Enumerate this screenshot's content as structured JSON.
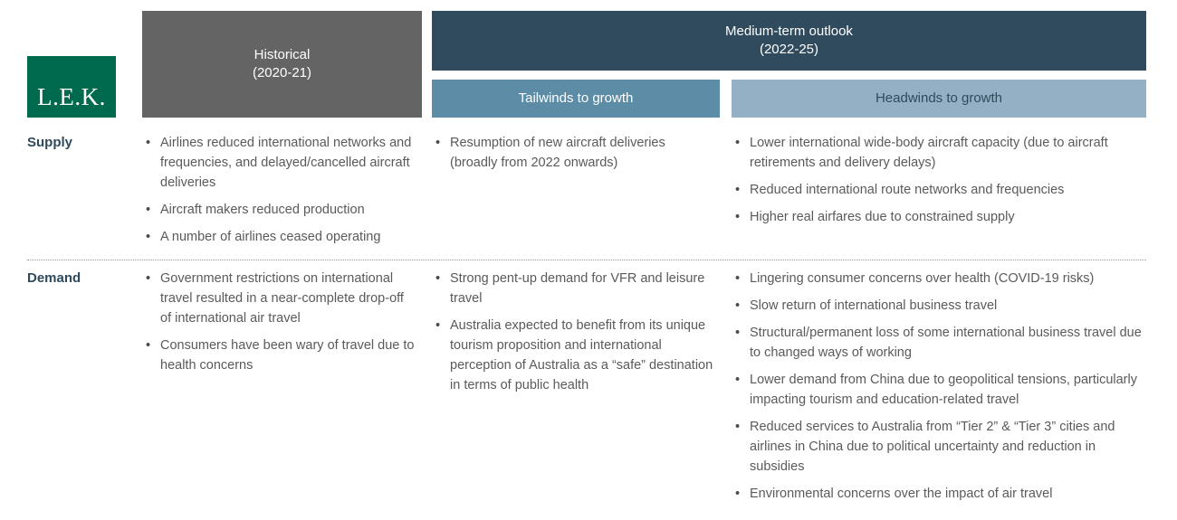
{
  "colors": {
    "lek_green": "#006a4e",
    "gray_header": "#646464",
    "dark_slate": "#304b5e",
    "tailwinds_blue": "#5d8ca7",
    "headwinds_blue": "#94b0c4",
    "label_color": "#2e4a5c",
    "body_text": "#5a5a5a"
  },
  "brand": {
    "logo_text": "L.E.K."
  },
  "header": {
    "historical_line1": "Historical",
    "historical_line2": "(2020-21)",
    "medium_term_line1": "Medium-term outlook",
    "medium_term_line2": "(2022-25)",
    "tailwinds_label": "Tailwinds to growth",
    "headwinds_label": "Headwinds to growth"
  },
  "rows": [
    {
      "label": "Supply",
      "historical": [
        "Airlines reduced international networks and frequencies, and delayed/cancelled aircraft deliveries",
        "Aircraft makers reduced production",
        "A number of airlines ceased operating"
      ],
      "tailwinds": [
        "Resumption of new aircraft deliveries (broadly from 2022 onwards)"
      ],
      "headwinds": [
        "Lower international wide-body aircraft capacity (due to aircraft retirements and delivery delays)",
        "Reduced international route networks and frequencies",
        "Higher real airfares due to constrained supply"
      ]
    },
    {
      "label": "Demand",
      "historical": [
        "Government restrictions on international travel resulted in a near-complete drop-off of international air travel",
        "Consumers have been wary of travel due to health concerns"
      ],
      "tailwinds": [
        "Strong pent-up demand for VFR and leisure travel",
        "Australia expected to benefit from its unique tourism proposition and international perception of Australia as a “safe” destination in terms of public health"
      ],
      "headwinds": [
        "Lingering consumer concerns over health (COVID-19 risks)",
        "Slow return of international business travel",
        "Structural/permanent loss of some international business travel due to changed ways of working",
        "Lower demand from China due to geopolitical tensions, particularly impacting tourism and education-related travel",
        "Reduced services to Australia from “Tier 2” & “Tier 3” cities and airlines in China due to political uncertainty and reduction in subsidies",
        "Environmental concerns over the impact of air travel"
      ]
    }
  ]
}
